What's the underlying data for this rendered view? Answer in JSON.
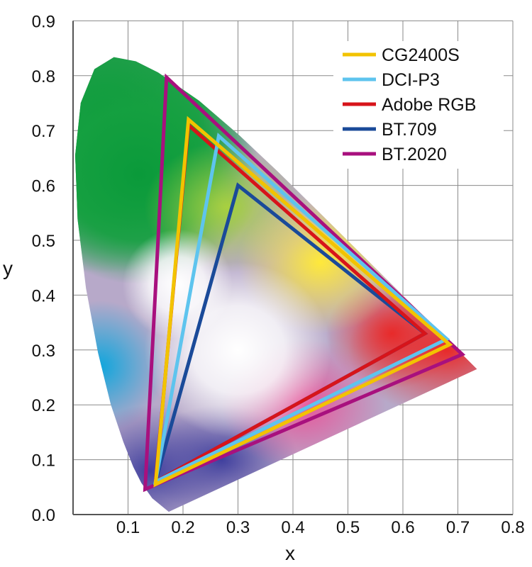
{
  "chart_data": {
    "type": "line",
    "xlabel": "x",
    "ylabel": "y",
    "xlim": [
      0,
      0.8
    ],
    "ylim": [
      0,
      0.9
    ],
    "x_ticks": [
      "0.1",
      "0.2",
      "0.3",
      "0.4",
      "0.5",
      "0.6",
      "0.7",
      "0.8"
    ],
    "y_ticks": [
      "0.0",
      "0.1",
      "0.2",
      "0.3",
      "0.4",
      "0.5",
      "0.6",
      "0.7",
      "0.8",
      "0.9"
    ],
    "grid": true,
    "legend_position": "top-right",
    "background_area": "CIE 1931 spectral locus filled with chromaticity colors",
    "spectral_locus": [
      [
        0.1741,
        0.005
      ],
      [
        0.144,
        0.0297
      ],
      [
        0.1241,
        0.0578
      ],
      [
        0.1096,
        0.0868
      ],
      [
        0.0913,
        0.1327
      ],
      [
        0.0687,
        0.2007
      ],
      [
        0.0454,
        0.295
      ],
      [
        0.0235,
        0.4127
      ],
      [
        0.0082,
        0.5384
      ],
      [
        0.0039,
        0.6548
      ],
      [
        0.0139,
        0.7502
      ],
      [
        0.0389,
        0.812
      ],
      [
        0.0743,
        0.8338
      ],
      [
        0.1142,
        0.8262
      ],
      [
        0.1547,
        0.8059
      ],
      [
        0.2296,
        0.7543
      ],
      [
        0.3016,
        0.6923
      ],
      [
        0.3731,
        0.6245
      ],
      [
        0.4441,
        0.5547
      ],
      [
        0.5125,
        0.4866
      ],
      [
        0.5752,
        0.4242
      ],
      [
        0.627,
        0.3725
      ],
      [
        0.6915,
        0.3083
      ],
      [
        0.719,
        0.2809
      ],
      [
        0.7347,
        0.2653
      ]
    ],
    "series": [
      {
        "name": "CG2400S",
        "color": "#f2c300",
        "points": [
          [
            0.685,
            0.31
          ],
          [
            0.21,
            0.72
          ],
          [
            0.15,
            0.055
          ]
        ]
      },
      {
        "name": "DCI-P3",
        "color": "#5ec4ee",
        "points": [
          [
            0.68,
            0.32
          ],
          [
            0.265,
            0.69
          ],
          [
            0.15,
            0.06
          ]
        ]
      },
      {
        "name": "Adobe RGB",
        "color": "#d7141a",
        "points": [
          [
            0.64,
            0.33
          ],
          [
            0.21,
            0.71
          ],
          [
            0.15,
            0.06
          ]
        ]
      },
      {
        "name": "BT.709",
        "color": "#1a4a99",
        "points": [
          [
            0.64,
            0.33
          ],
          [
            0.3,
            0.6
          ],
          [
            0.15,
            0.06
          ]
        ]
      },
      {
        "name": "BT.2020",
        "color": "#a8107e",
        "points": [
          [
            0.708,
            0.292
          ],
          [
            0.17,
            0.797
          ],
          [
            0.131,
            0.046
          ]
        ]
      }
    ]
  }
}
